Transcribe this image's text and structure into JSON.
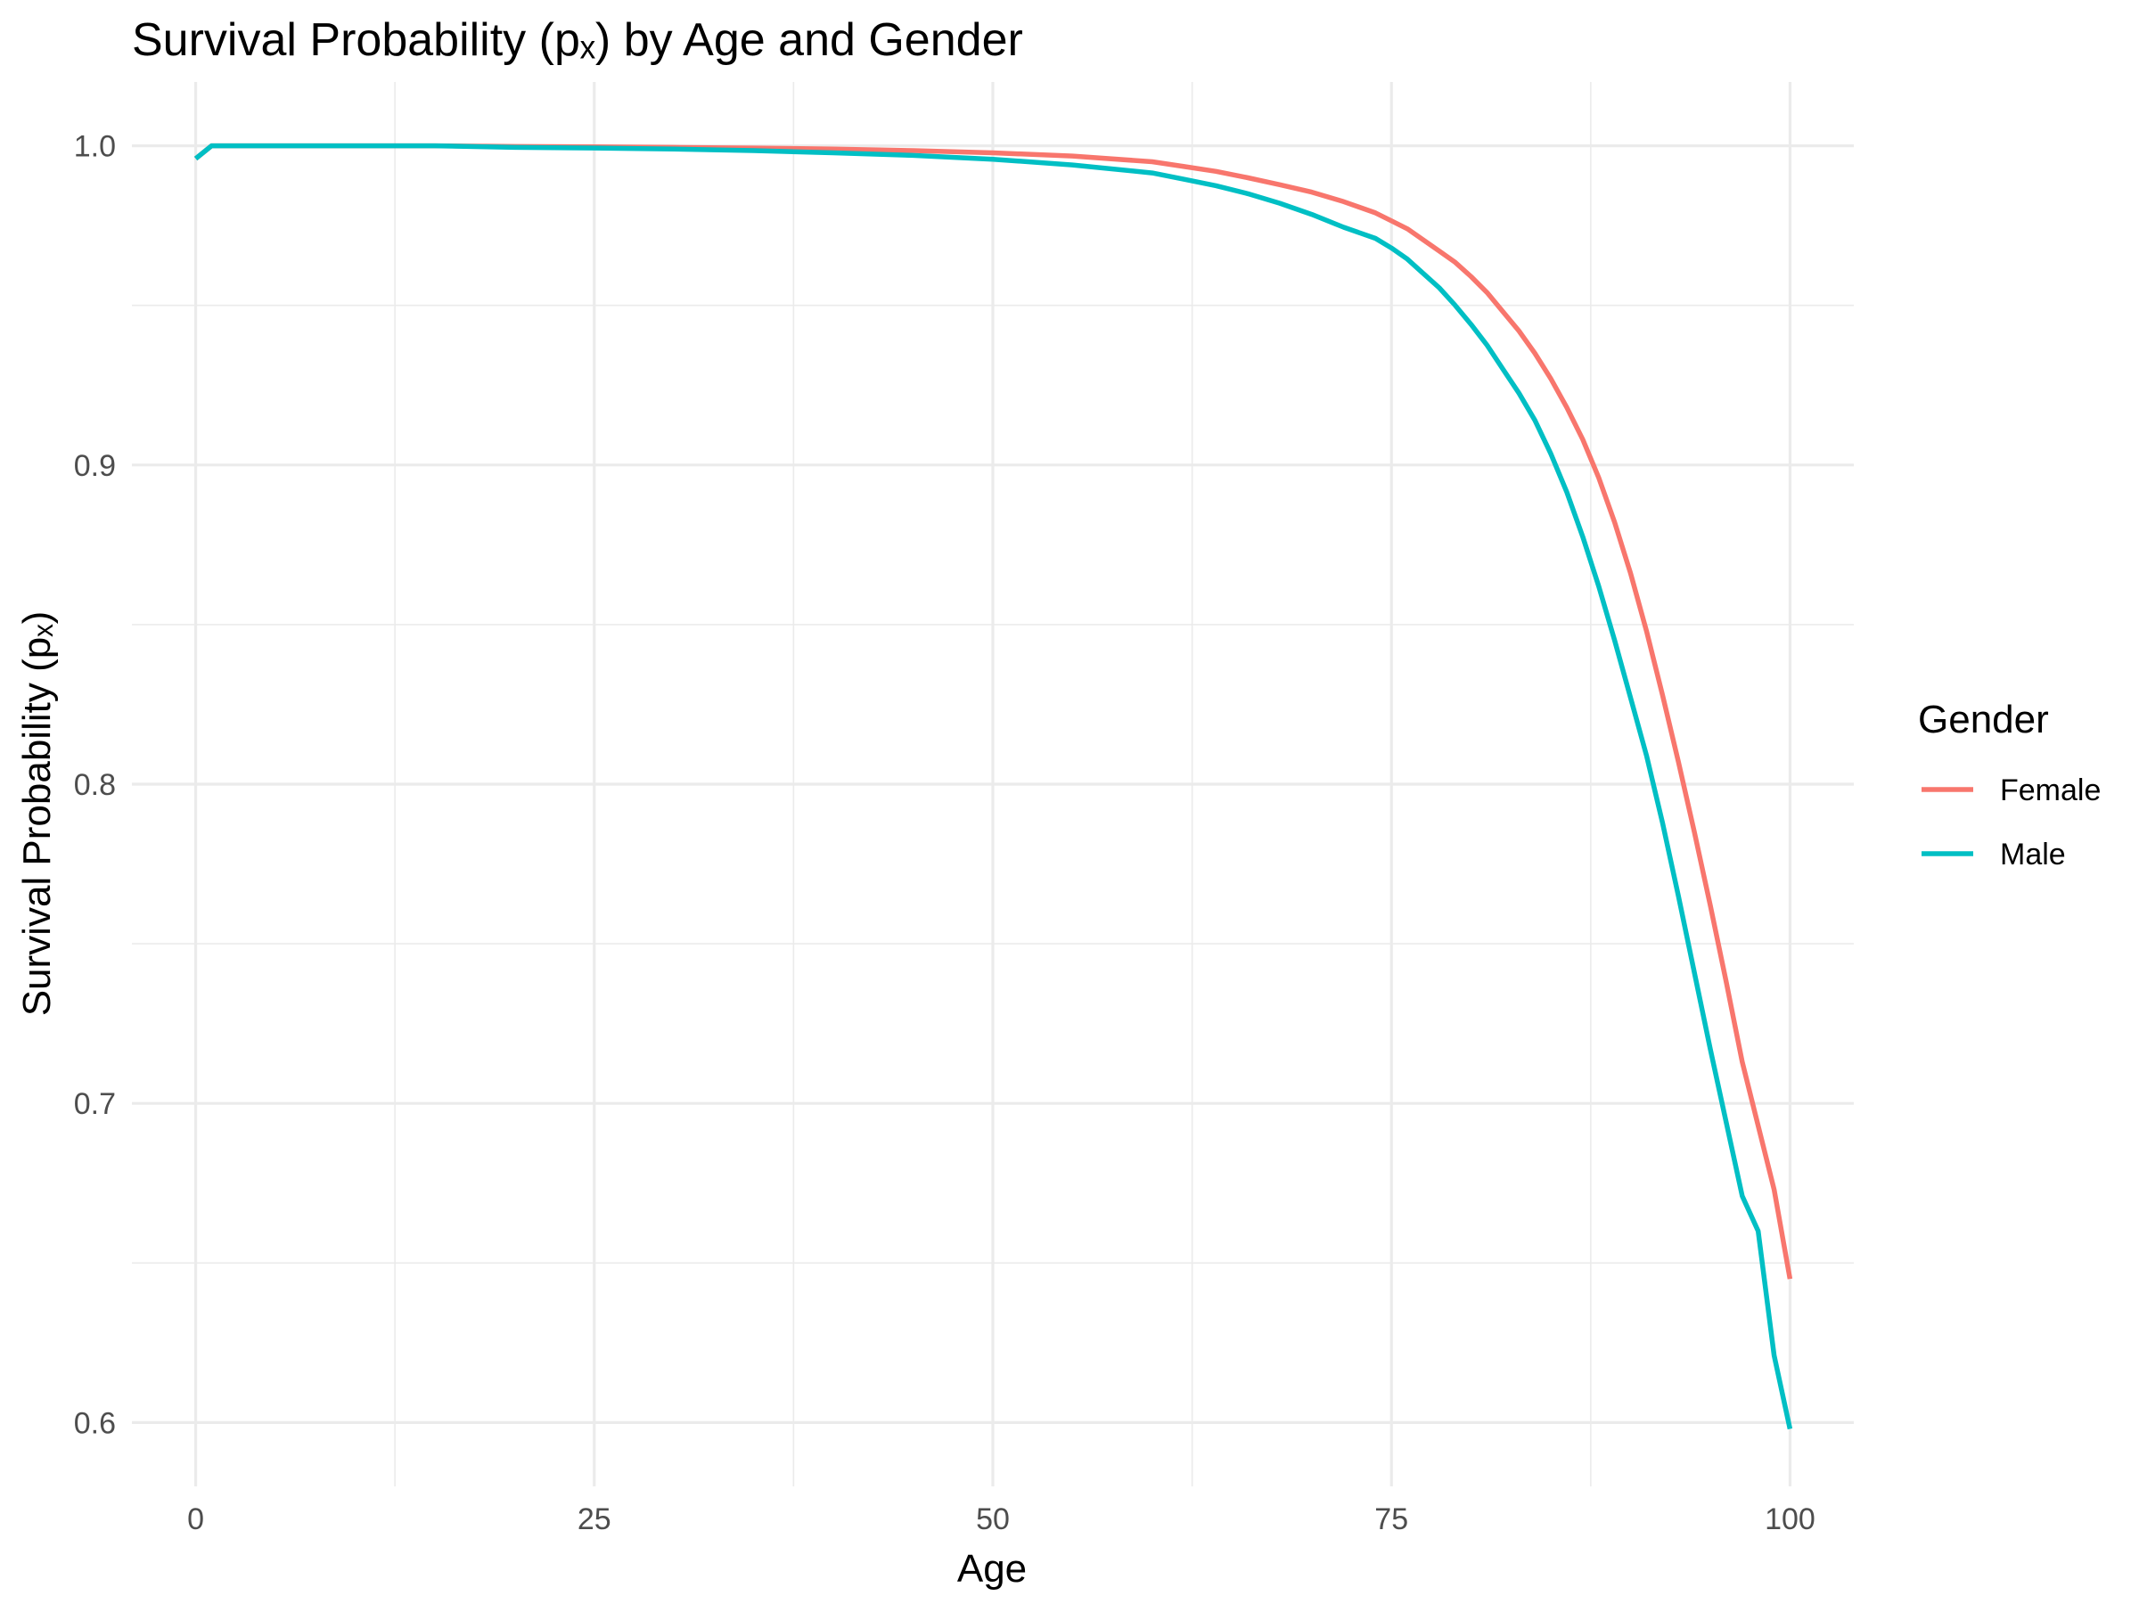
{
  "chart_data": {
    "type": "line",
    "title": "Survival Probability (pₓ) by Age and Gender",
    "xlabel": "Age",
    "ylabel": "Survival Probability (pₓ)",
    "xlim": [
      -4,
      104
    ],
    "ylim": [
      0.58,
      1.02
    ],
    "x_ticks": [
      0,
      25,
      50,
      75,
      100
    ],
    "x_tick_labels": [
      "0",
      "25",
      "50",
      "75",
      "100"
    ],
    "x_minor": [
      12.5,
      37.5,
      62.5,
      87.5
    ],
    "y_ticks": [
      0.6,
      0.7,
      0.8,
      0.9,
      1.0
    ],
    "y_tick_labels": [
      "0.6",
      "0.7",
      "0.8",
      "0.9",
      "1.0"
    ],
    "y_minor": [
      0.65,
      0.75,
      0.85,
      0.95
    ],
    "grid": true,
    "legend": {
      "title": "Gender",
      "position": "right"
    },
    "series": [
      {
        "name": "Female",
        "color": "#F8766D",
        "x": [
          0,
          1,
          5,
          10,
          15,
          20,
          25,
          30,
          35,
          40,
          45,
          50,
          55,
          60,
          62,
          64,
          66,
          68,
          70,
          72,
          74,
          75,
          76,
          77,
          78,
          79,
          80,
          81,
          82,
          83,
          84,
          85,
          86,
          87,
          88,
          89,
          90,
          91,
          92,
          93,
          94,
          95,
          96,
          97,
          98,
          99,
          100
        ],
        "y": [
          0.996,
          1.0,
          1.0,
          1.0,
          1.0,
          0.9998,
          0.9997,
          0.9995,
          0.9993,
          0.999,
          0.9985,
          0.9978,
          0.9968,
          0.995,
          0.9935,
          0.992,
          0.99,
          0.9878,
          0.9855,
          0.9825,
          0.979,
          0.9765,
          0.974,
          0.9705,
          0.967,
          0.9635,
          0.959,
          0.954,
          0.948,
          0.942,
          0.935,
          0.927,
          0.918,
          0.908,
          0.896,
          0.882,
          0.866,
          0.848,
          0.828,
          0.807,
          0.785,
          0.762,
          0.738,
          0.713,
          0.693,
          0.673,
          0.645
        ]
      },
      {
        "name": "Male",
        "color": "#00BFC4",
        "x": [
          0,
          1,
          5,
          10,
          15,
          20,
          25,
          30,
          35,
          40,
          45,
          50,
          55,
          60,
          62,
          64,
          66,
          68,
          70,
          72,
          74,
          75,
          76,
          77,
          78,
          79,
          80,
          81,
          82,
          83,
          84,
          85,
          86,
          87,
          88,
          89,
          90,
          91,
          92,
          93,
          94,
          95,
          96,
          97,
          98,
          99,
          100
        ],
        "y": [
          0.996,
          1.0,
          1.0,
          1.0,
          1.0,
          0.9995,
          0.9993,
          0.999,
          0.9985,
          0.9978,
          0.997,
          0.9958,
          0.994,
          0.9915,
          0.9895,
          0.9875,
          0.985,
          0.982,
          0.9785,
          0.9745,
          0.971,
          0.968,
          0.9645,
          0.96,
          0.9555,
          0.95,
          0.944,
          0.9375,
          0.93,
          0.9225,
          0.914,
          0.9035,
          0.8915,
          0.8775,
          0.862,
          0.845,
          0.827,
          0.809,
          0.788,
          0.765,
          0.741,
          0.717,
          0.694,
          0.671,
          0.66,
          0.621,
          0.598
        ]
      }
    ]
  }
}
